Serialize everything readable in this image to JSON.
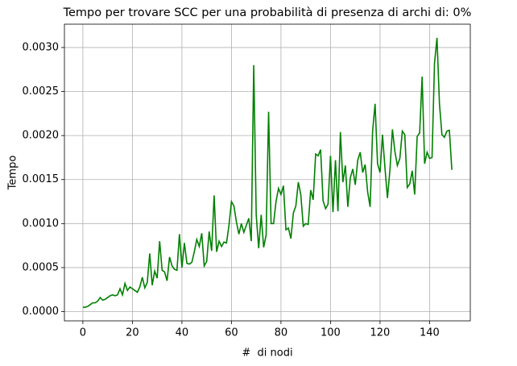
{
  "chart_data": {
    "type": "line",
    "title": "Tempo per trovare SCC per una probabilità di presenza di archi di: 0%",
    "x_label": "#  di nodi",
    "y_label": "Tempo",
    "x": [
      0,
      1,
      2,
      3,
      4,
      5,
      6,
      7,
      8,
      9,
      10,
      11,
      12,
      13,
      14,
      15,
      16,
      17,
      18,
      19,
      20,
      21,
      22,
      23,
      24,
      25,
      26,
      27,
      28,
      29,
      30,
      31,
      32,
      33,
      34,
      35,
      36,
      37,
      38,
      39,
      40,
      41,
      42,
      43,
      44,
      45,
      46,
      47,
      48,
      49,
      50,
      51,
      52,
      53,
      54,
      55,
      56,
      57,
      58,
      59,
      60,
      61,
      62,
      63,
      64,
      65,
      66,
      67,
      68,
      69,
      70,
      71,
      72,
      73,
      74,
      75,
      76,
      77,
      78,
      79,
      80,
      81,
      82,
      83,
      84,
      85,
      86,
      87,
      88,
      89,
      90,
      91,
      92,
      93,
      94,
      95,
      96,
      97,
      98,
      99,
      100,
      101,
      102,
      103,
      104,
      105,
      106,
      107,
      108,
      109,
      110,
      111,
      112,
      113,
      114,
      115,
      116,
      117,
      118,
      119,
      120,
      121,
      122,
      123,
      124,
      125,
      126,
      127,
      128,
      129,
      130,
      131,
      132,
      133,
      134,
      135,
      136,
      137,
      138,
      139,
      140,
      141,
      142,
      143,
      144,
      145,
      146,
      147,
      148,
      149
    ],
    "series": [
      {
        "name": "Tempo",
        "color": "#008000",
        "values": [
          5e-05,
          5e-05,
          6e-05,
          8e-05,
          0.0001,
          0.0001,
          0.00012,
          0.00016,
          0.00013,
          0.00014,
          0.00016,
          0.00018,
          0.00019,
          0.00018,
          0.00019,
          0.00026,
          0.00019,
          0.00032,
          0.00024,
          0.00028,
          0.00026,
          0.00024,
          0.00022,
          0.00028,
          0.00039,
          0.00027,
          0.00033,
          0.00066,
          0.0003,
          0.00046,
          0.00038,
          0.0008,
          0.00047,
          0.00045,
          0.00035,
          0.00062,
          0.00052,
          0.00048,
          0.00047,
          0.00088,
          0.0005,
          0.00078,
          0.00055,
          0.00054,
          0.00056,
          0.00068,
          0.00082,
          0.00074,
          0.00089,
          0.00052,
          0.00057,
          0.00091,
          0.00069,
          0.00132,
          0.00068,
          0.0008,
          0.00074,
          0.00079,
          0.00078,
          0.00098,
          0.00125,
          0.0012,
          0.00102,
          0.00088,
          0.001,
          0.0009,
          0.00098,
          0.00106,
          0.0008,
          0.0028,
          0.0011,
          0.00072,
          0.0011,
          0.00073,
          0.00087,
          0.00227,
          0.001,
          0.001,
          0.00125,
          0.0014,
          0.00133,
          0.00143,
          0.00093,
          0.00095,
          0.00083,
          0.00112,
          0.0012,
          0.00147,
          0.00133,
          0.00097,
          0.001,
          0.00099,
          0.00138,
          0.00127,
          0.00179,
          0.00177,
          0.00184,
          0.00126,
          0.00117,
          0.00122,
          0.00177,
          0.00113,
          0.00172,
          0.00114,
          0.00204,
          0.00147,
          0.00166,
          0.00119,
          0.00152,
          0.00162,
          0.00144,
          0.00172,
          0.00181,
          0.00158,
          0.00167,
          0.00136,
          0.00119,
          0.00205,
          0.00236,
          0.00168,
          0.00158,
          0.00201,
          0.00163,
          0.00129,
          0.00161,
          0.00207,
          0.00182,
          0.00166,
          0.00174,
          0.00205,
          0.00201,
          0.00141,
          0.00145,
          0.0016,
          0.00133,
          0.00199,
          0.00203,
          0.00267,
          0.00168,
          0.00181,
          0.00174,
          0.00175,
          0.00282,
          0.00311,
          0.00236,
          0.00201,
          0.00198,
          0.00205,
          0.00206,
          0.00161
        ]
      }
    ],
    "xlim": [
      -7.45,
      156.45
    ],
    "xticks": [
      0,
      20,
      40,
      60,
      80,
      100,
      120,
      140
    ],
    "ylim": [
      -0.000105,
      0.003265
    ],
    "yticks": [
      {
        "value": 0,
        "label": "0.0000"
      },
      {
        "value": 0.0005,
        "label": "0.0005"
      },
      {
        "value": 0.001,
        "label": "0.0010"
      },
      {
        "value": 0.0015,
        "label": "0.0015"
      },
      {
        "value": 0.002,
        "label": "0.0020"
      },
      {
        "value": 0.0025,
        "label": "0.0025"
      },
      {
        "value": 0.003,
        "label": "0.0030"
      }
    ],
    "grid": true
  }
}
